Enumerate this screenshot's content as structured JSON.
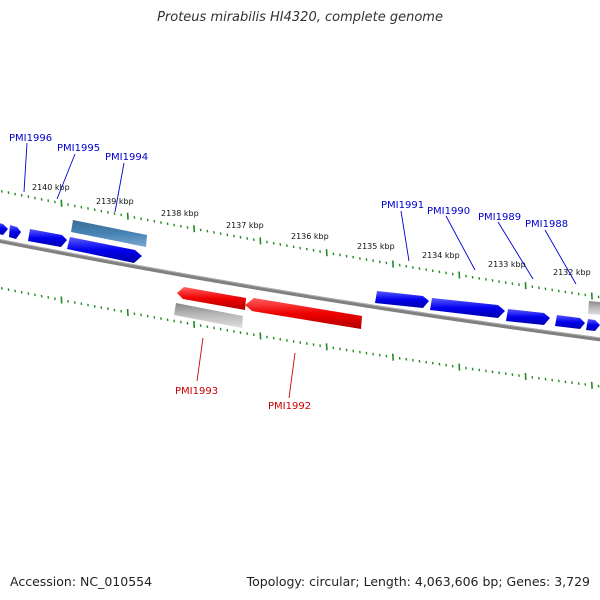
{
  "title": "Proteus mirabilis HI4320, complete genome",
  "footer": {
    "accession": "Accession: NC_010554",
    "summary": "Topology: circular; Length: 4,063,606 bp; Genes: 3,729"
  },
  "colors": {
    "forward_gene": "#0000ee",
    "reverse_gene": "#ee0000",
    "pseudo_gene": "#4682b4",
    "gray_gene": "#b8b8b8",
    "backbone": "#808080",
    "ticks": "#228b22",
    "label_forward": "#0000cc",
    "label_reverse": "#cc0000"
  },
  "scale": {
    "unit": "kbp",
    "labels": [
      "2140 kbp",
      "2139 kbp",
      "2138 kbp",
      "2137 kbp",
      "2136 kbp",
      "2135 kbp",
      "2134 kbp",
      "2133 kbp",
      "2132 kbp"
    ]
  },
  "genes": {
    "forward_labels": [
      "PMI1996",
      "PMI1995",
      "PMI1994",
      "PMI1991",
      "PMI1990",
      "PMI1989",
      "PMI1988"
    ],
    "reverse_labels": [
      "PMI1993",
      "PMI1992"
    ]
  }
}
